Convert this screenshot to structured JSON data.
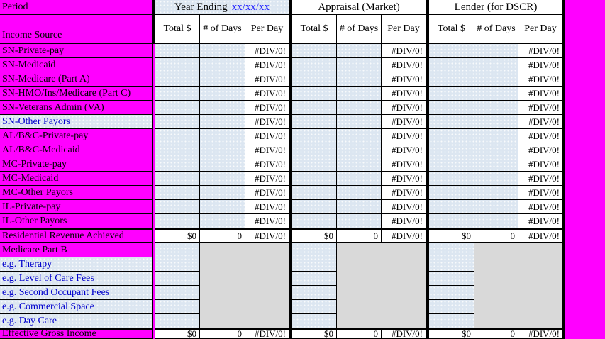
{
  "colors": {
    "magenta": "#FF00FF",
    "cell_blue": "#DCE6F1",
    "gray": "#D9D9D9",
    "blue_text": "#0000CC",
    "date_blue": "#1F1FFF",
    "border": "#000000"
  },
  "header": {
    "period_label": "Period",
    "income_source_label": "Income Source",
    "groups": [
      {
        "title": "Year Ending",
        "date": "xx/xx/xx"
      },
      {
        "title": "Appraisal (Market)"
      },
      {
        "title": "Lender (for DSCR)"
      }
    ],
    "columns": [
      "Total $",
      "# of Days",
      "Per Day"
    ]
  },
  "error_value": "#DIV/0!",
  "rows": [
    {
      "label": "SN-Private-pay",
      "variant": "magenta",
      "type": "input",
      "groups": [
        [
          "",
          "",
          "#DIV/0!"
        ],
        [
          "",
          "",
          "#DIV/0!"
        ],
        [
          "",
          "",
          "#DIV/0!"
        ]
      ]
    },
    {
      "label": "SN-Medicaid",
      "variant": "magenta",
      "type": "input",
      "groups": [
        [
          "",
          "",
          "#DIV/0!"
        ],
        [
          "",
          "",
          "#DIV/0!"
        ],
        [
          "",
          "",
          "#DIV/0!"
        ]
      ]
    },
    {
      "label": "SN-Medicare (Part A)",
      "variant": "magenta",
      "type": "input",
      "groups": [
        [
          "",
          "",
          "#DIV/0!"
        ],
        [
          "",
          "",
          "#DIV/0!"
        ],
        [
          "",
          "",
          "#DIV/0!"
        ]
      ]
    },
    {
      "label": "SN-HMO/Ins/Medicare (Part C)",
      "variant": "magenta",
      "type": "input",
      "groups": [
        [
          "",
          "",
          "#DIV/0!"
        ],
        [
          "",
          "",
          "#DIV/0!"
        ],
        [
          "",
          "",
          "#DIV/0!"
        ]
      ]
    },
    {
      "label": "SN-Veterans Admin (VA)",
      "variant": "magenta",
      "type": "input",
      "groups": [
        [
          "",
          "",
          "#DIV/0!"
        ],
        [
          "",
          "",
          "#DIV/0!"
        ],
        [
          "",
          "",
          "#DIV/0!"
        ]
      ]
    },
    {
      "label": "SN-Other Payors",
      "variant": "highlight",
      "type": "input",
      "groups": [
        [
          "",
          "",
          "#DIV/0!"
        ],
        [
          "",
          "",
          "#DIV/0!"
        ],
        [
          "",
          "",
          "#DIV/0!"
        ]
      ]
    },
    {
      "label": "AL/B&C-Private-pay",
      "variant": "magenta",
      "type": "input",
      "groups": [
        [
          "",
          "",
          "#DIV/0!"
        ],
        [
          "",
          "",
          "#DIV/0!"
        ],
        [
          "",
          "",
          "#DIV/0!"
        ]
      ]
    },
    {
      "label": "AL/B&C-Medicaid",
      "variant": "magenta",
      "type": "input",
      "groups": [
        [
          "",
          "",
          "#DIV/0!"
        ],
        [
          "",
          "",
          "#DIV/0!"
        ],
        [
          "",
          "",
          "#DIV/0!"
        ]
      ]
    },
    {
      "label": "MC-Private-pay",
      "variant": "magenta",
      "type": "input",
      "groups": [
        [
          "",
          "",
          "#DIV/0!"
        ],
        [
          "",
          "",
          "#DIV/0!"
        ],
        [
          "",
          "",
          "#DIV/0!"
        ]
      ]
    },
    {
      "label": "MC-Medicaid",
      "variant": "magenta",
      "type": "input",
      "groups": [
        [
          "",
          "",
          "#DIV/0!"
        ],
        [
          "",
          "",
          "#DIV/0!"
        ],
        [
          "",
          "",
          "#DIV/0!"
        ]
      ]
    },
    {
      "label": "MC-Other Payors",
      "variant": "magenta",
      "type": "input",
      "groups": [
        [
          "",
          "",
          "#DIV/0!"
        ],
        [
          "",
          "",
          "#DIV/0!"
        ],
        [
          "",
          "",
          "#DIV/0!"
        ]
      ]
    },
    {
      "label": "IL-Private-pay",
      "variant": "magenta",
      "type": "input",
      "groups": [
        [
          "",
          "",
          "#DIV/0!"
        ],
        [
          "",
          "",
          "#DIV/0!"
        ],
        [
          "",
          "",
          "#DIV/0!"
        ]
      ]
    },
    {
      "label": "IL-Other Payors",
      "variant": "magenta",
      "type": "input",
      "groups": [
        [
          "",
          "",
          "#DIV/0!"
        ],
        [
          "",
          "",
          "#DIV/0!"
        ],
        [
          "",
          "",
          "#DIV/0!"
        ]
      ]
    },
    {
      "label": "Residential Revenue Achieved",
      "variant": "magenta",
      "type": "total",
      "groups": [
        [
          "$0",
          "0",
          "#DIV/0!"
        ],
        [
          "$0",
          "0",
          "#DIV/0!"
        ],
        [
          "$0",
          "0",
          "#DIV/0!"
        ]
      ]
    },
    {
      "label": "Medicare Part B",
      "variant": "magenta",
      "type": "gray",
      "groups": [
        [
          "",
          "",
          ""
        ],
        [
          "",
          "",
          ""
        ],
        [
          "",
          "",
          ""
        ]
      ]
    },
    {
      "label": "e.g. Therapy",
      "variant": "highlight",
      "type": "gray",
      "groups": [
        [
          "",
          "",
          ""
        ],
        [
          "",
          "",
          ""
        ],
        [
          "",
          "",
          ""
        ]
      ]
    },
    {
      "label": "e.g. Level of Care Fees",
      "variant": "highlight",
      "type": "gray",
      "groups": [
        [
          "",
          "",
          ""
        ],
        [
          "",
          "",
          ""
        ],
        [
          "",
          "",
          ""
        ]
      ]
    },
    {
      "label": "e.g. Second Occupant Fees",
      "variant": "highlight",
      "type": "gray",
      "groups": [
        [
          "",
          "",
          ""
        ],
        [
          "",
          "",
          ""
        ],
        [
          "",
          "",
          ""
        ]
      ]
    },
    {
      "label": "e.g. Commercial Space",
      "variant": "highlight",
      "type": "gray",
      "groups": [
        [
          "",
          "",
          ""
        ],
        [
          "",
          "",
          ""
        ],
        [
          "",
          "",
          ""
        ]
      ]
    },
    {
      "label": "e.g. Day Care",
      "variant": "highlight",
      "type": "gray",
      "groups": [
        [
          "",
          "",
          ""
        ],
        [
          "",
          "",
          ""
        ],
        [
          "",
          "",
          ""
        ]
      ]
    },
    {
      "label": "Effective Gross Income",
      "variant": "magenta",
      "type": "total",
      "groups": [
        [
          "$0",
          "0",
          "#DIV/0!"
        ],
        [
          "$0",
          "0",
          "#DIV/0!"
        ],
        [
          "$0",
          "0",
          "#DIV/0!"
        ]
      ]
    }
  ]
}
